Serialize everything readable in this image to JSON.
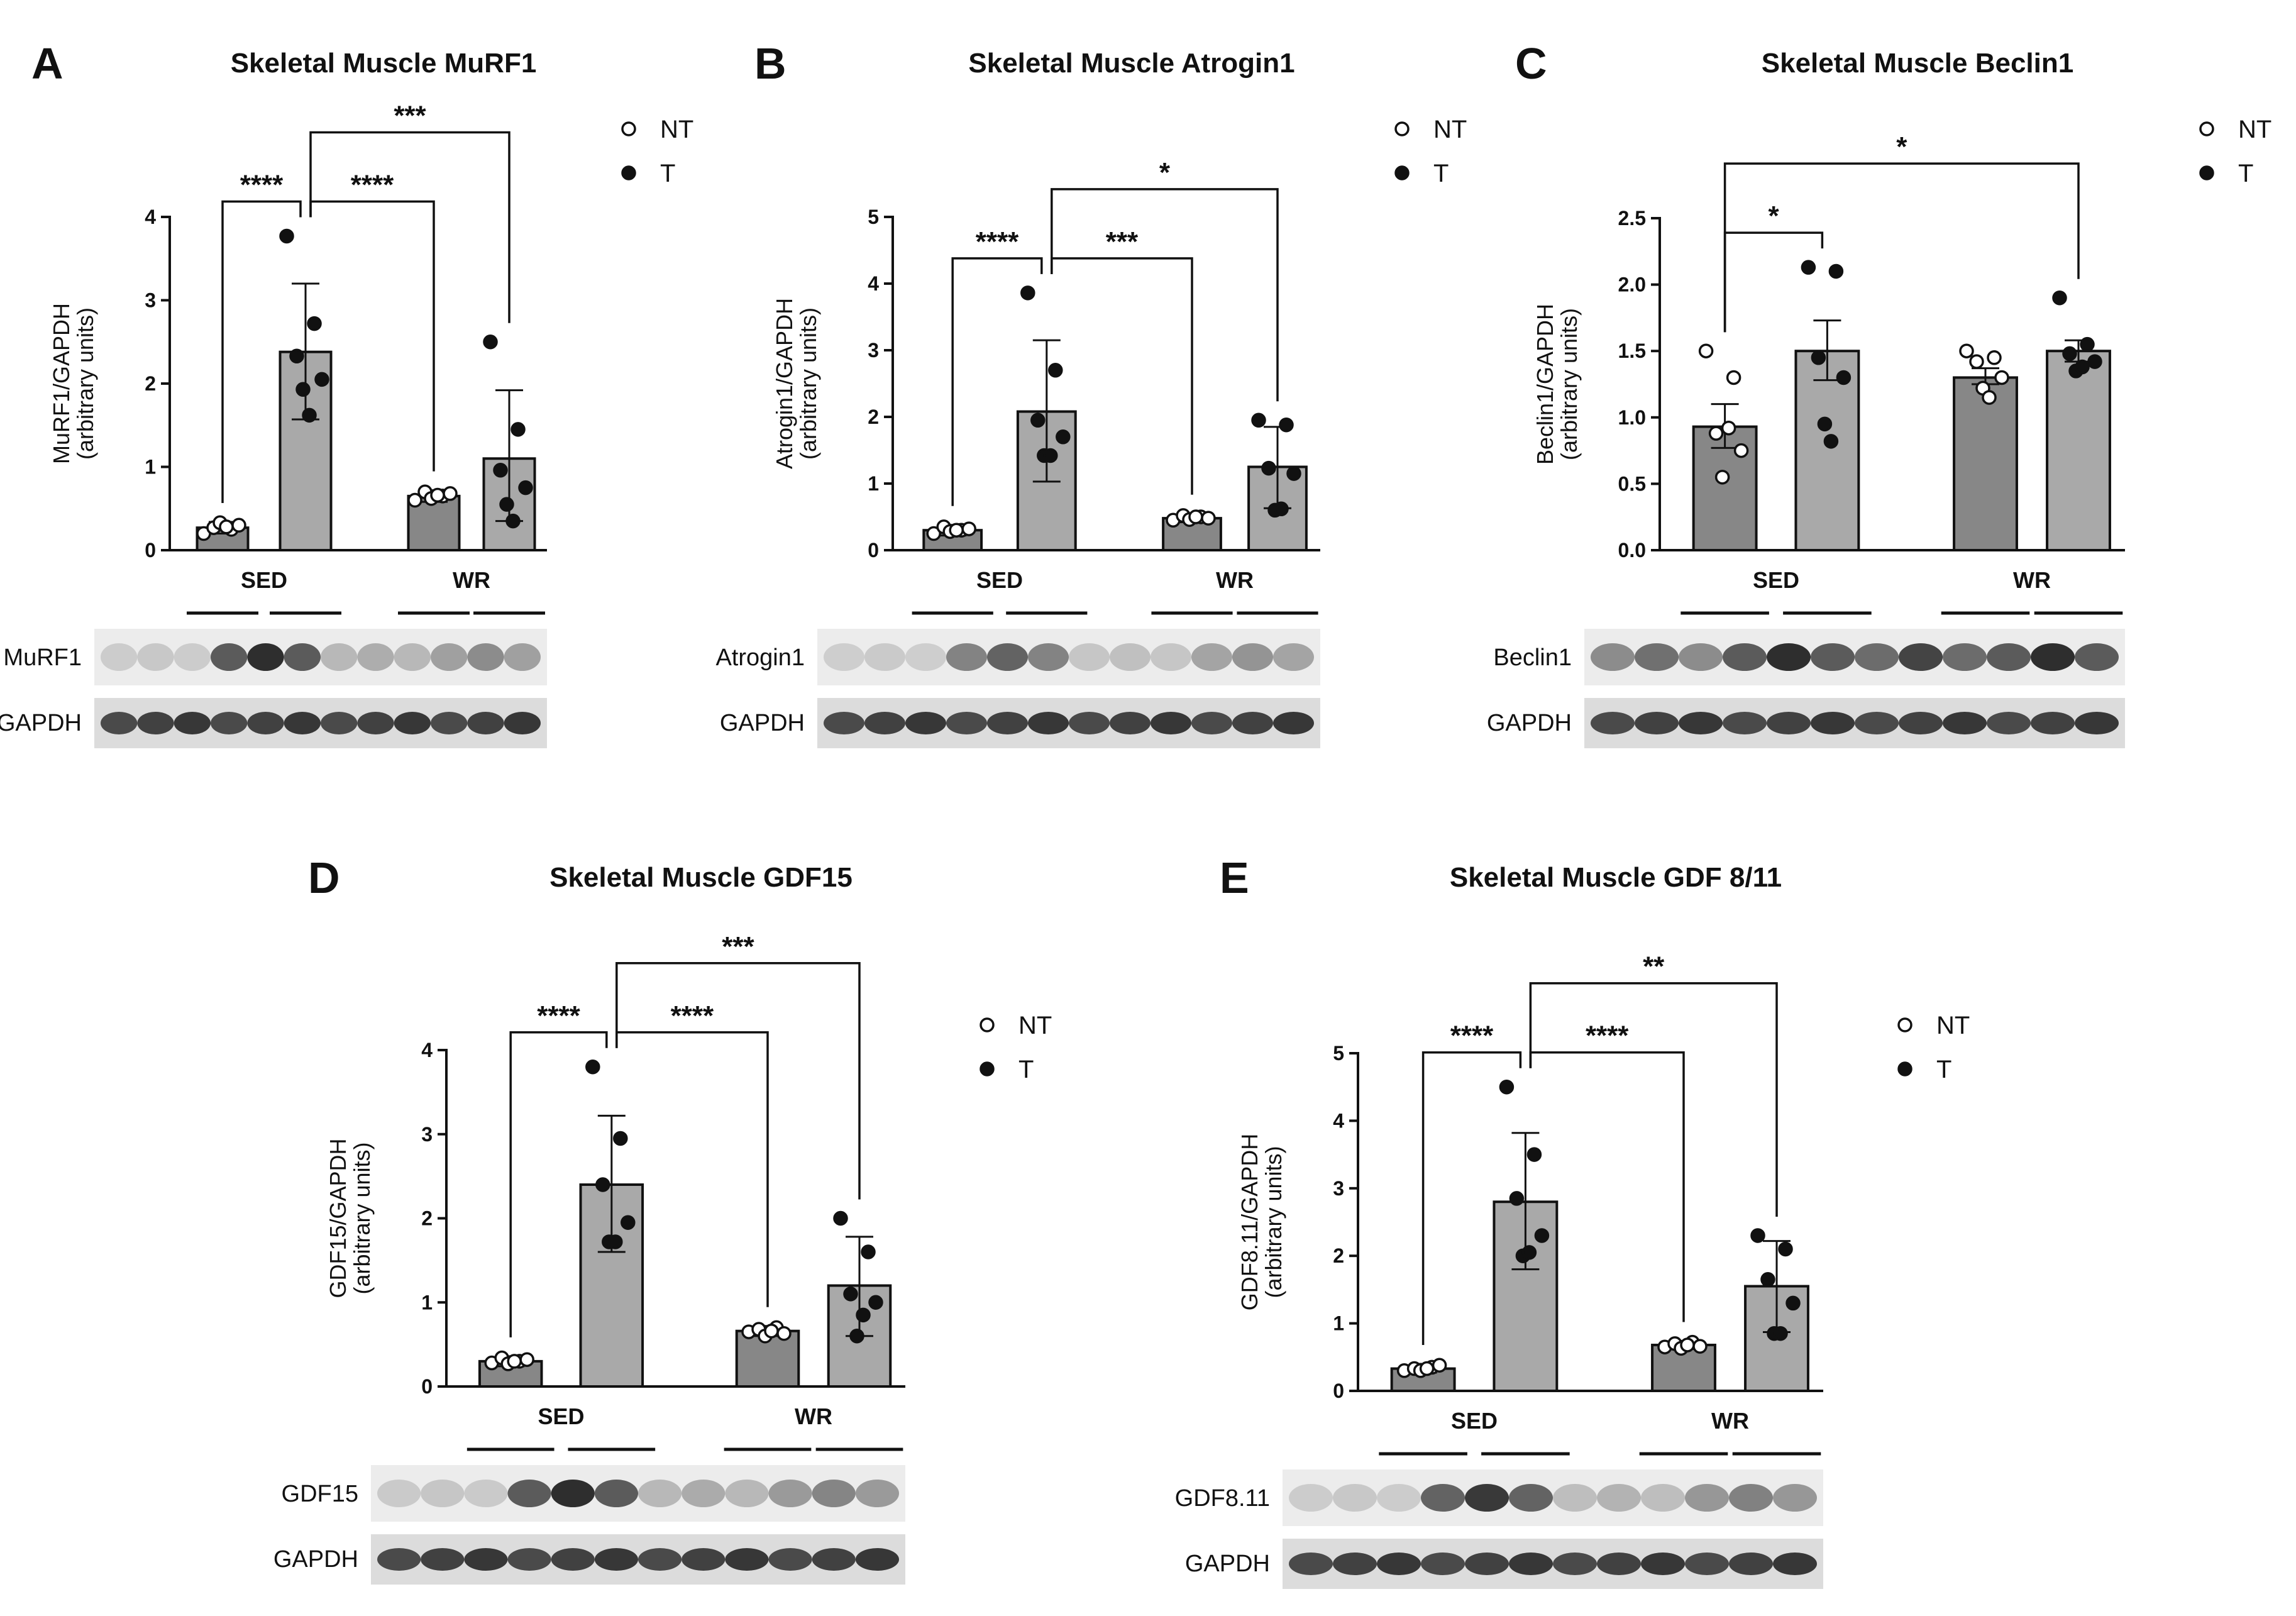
{
  "charts": [
    {
      "id": "A",
      "letter": "A",
      "chart_data": {
        "type": "bar",
        "title": "Skeletal Muscle MuRF1",
        "ylabel": [
          "MuRF1/GAPDH",
          "(arbitrary units)"
        ],
        "ylim": [
          0,
          4
        ],
        "yticks": [
          "0",
          "1",
          "2",
          "3",
          "4"
        ],
        "groups": [
          "SED",
          "WR"
        ],
        "legend": [
          "NT",
          "T"
        ],
        "legend_position": "right",
        "bars": [
          {
            "group": "SED",
            "treatment": "NT",
            "mean": 0.27,
            "err_low": 0.2,
            "err_high": 0.34,
            "points": [
              0.2,
              0.25,
              0.27,
              0.3,
              0.33,
              0.28
            ]
          },
          {
            "group": "SED",
            "treatment": "T",
            "mean": 2.38,
            "err_low": 1.57,
            "err_high": 3.2,
            "points": [
              3.77,
              2.72,
              2.33,
              2.05,
              1.93,
              1.62
            ]
          },
          {
            "group": "WR",
            "treatment": "NT",
            "mean": 0.65,
            "err_low": 0.58,
            "err_high": 0.72,
            "points": [
              0.6,
              0.65,
              0.7,
              0.68,
              0.62,
              0.66
            ]
          },
          {
            "group": "WR",
            "treatment": "T",
            "mean": 1.1,
            "err_low": 0.35,
            "err_high": 1.92,
            "points": [
              2.5,
              1.45,
              0.96,
              0.75,
              0.55,
              0.35
            ]
          }
        ],
        "significance": [
          {
            "from": 0,
            "to": 1,
            "label": "****"
          },
          {
            "from": 1,
            "to": 2,
            "label": "****"
          },
          {
            "from": 1,
            "to": 3,
            "label": "***"
          }
        ],
        "ymax_plot": 4,
        "blot": {
          "labels": [
            "MuRF1",
            "GAPDH"
          ]
        }
      }
    },
    {
      "id": "B",
      "letter": "B",
      "chart_data": {
        "type": "bar",
        "title": "Skeletal Muscle Atrogin1",
        "ylabel": [
          "Atrogin1/GAPDH",
          "(arbitrary units)"
        ],
        "ylim": [
          0,
          5
        ],
        "yticks": [
          "0",
          "1",
          "2",
          "3",
          "4",
          "5"
        ],
        "groups": [
          "SED",
          "WR"
        ],
        "legend": [
          "NT",
          "T"
        ],
        "legend_position": "right",
        "bars": [
          {
            "group": "SED",
            "treatment": "NT",
            "mean": 0.3,
            "err_low": 0.22,
            "err_high": 0.38,
            "points": [
              0.25,
              0.3,
              0.35,
              0.32,
              0.28,
              0.3
            ]
          },
          {
            "group": "SED",
            "treatment": "T",
            "mean": 2.08,
            "err_low": 1.03,
            "err_high": 3.15,
            "points": [
              3.86,
              2.7,
              1.95,
              1.7,
              1.42,
              1.42
            ]
          },
          {
            "group": "WR",
            "treatment": "NT",
            "mean": 0.48,
            "err_low": 0.42,
            "err_high": 0.55,
            "points": [
              0.45,
              0.5,
              0.52,
              0.48,
              0.46,
              0.5
            ]
          },
          {
            "group": "WR",
            "treatment": "T",
            "mean": 1.25,
            "err_low": 0.63,
            "err_high": 1.85,
            "points": [
              1.95,
              1.88,
              1.23,
              1.15,
              0.6,
              0.62
            ]
          }
        ],
        "significance": [
          {
            "from": 0,
            "to": 1,
            "label": "****"
          },
          {
            "from": 1,
            "to": 2,
            "label": "***"
          },
          {
            "from": 1,
            "to": 3,
            "label": "*"
          }
        ],
        "ymax_plot": 5,
        "blot": {
          "labels": [
            "Atrogin1",
            "GAPDH"
          ]
        }
      }
    },
    {
      "id": "C",
      "letter": "C",
      "chart_data": {
        "type": "bar",
        "title": "Skeletal Muscle Beclin1",
        "ylabel": [
          "Beclin1/GAPDH",
          "(arbitrary units)"
        ],
        "ylim": [
          0,
          2.5
        ],
        "yticks": [
          "0.0",
          "0.5",
          "1.0",
          "1.5",
          "2.0",
          "2.5"
        ],
        "groups": [
          "SED",
          "WR"
        ],
        "legend": [
          "NT",
          "T"
        ],
        "legend_position": "right",
        "bars": [
          {
            "group": "SED",
            "treatment": "NT",
            "mean": 0.93,
            "err_low": 0.77,
            "err_high": 1.1,
            "points": [
              1.5,
              1.3,
              0.88,
              0.75,
              0.55,
              0.92
            ]
          },
          {
            "group": "SED",
            "treatment": "T",
            "mean": 1.5,
            "err_low": 1.28,
            "err_high": 1.73,
            "points": [
              2.13,
              2.1,
              1.45,
              1.3,
              0.95,
              0.82
            ]
          },
          {
            "group": "WR",
            "treatment": "NT",
            "mean": 1.3,
            "err_low": 1.25,
            "err_high": 1.37,
            "points": [
              1.5,
              1.45,
              1.42,
              1.3,
              1.22,
              1.15
            ]
          },
          {
            "group": "WR",
            "treatment": "T",
            "mean": 1.5,
            "err_low": 1.42,
            "err_high": 1.58,
            "points": [
              1.9,
              1.55,
              1.48,
              1.42,
              1.35,
              1.38
            ]
          }
        ],
        "significance": [
          {
            "from": 0,
            "to": 1,
            "label": "*"
          },
          {
            "from": 0,
            "to": 3,
            "label": "*"
          }
        ],
        "ymax_plot": 2.5,
        "blot": {
          "labels": [
            "Beclin1",
            "GAPDH"
          ]
        }
      }
    },
    {
      "id": "D",
      "letter": "D",
      "chart_data": {
        "type": "bar",
        "title": "Skeletal Muscle GDF15",
        "ylabel": [
          "GDF15/GAPDH",
          "(arbitrary units)"
        ],
        "ylim": [
          0,
          4
        ],
        "yticks": [
          "0",
          "1",
          "2",
          "3",
          "4"
        ],
        "groups": [
          "SED",
          "WR"
        ],
        "legend": [
          "NT",
          "T"
        ],
        "legend_position": "right",
        "bars": [
          {
            "group": "SED",
            "treatment": "NT",
            "mean": 0.3,
            "err_low": 0.24,
            "err_high": 0.36,
            "points": [
              0.28,
              0.3,
              0.34,
              0.32,
              0.27,
              0.3
            ]
          },
          {
            "group": "SED",
            "treatment": "T",
            "mean": 2.4,
            "err_low": 1.6,
            "err_high": 3.22,
            "points": [
              3.8,
              2.95,
              2.4,
              1.95,
              1.72,
              1.72
            ]
          },
          {
            "group": "WR",
            "treatment": "NT",
            "mean": 0.66,
            "err_low": 0.6,
            "err_high": 0.72,
            "points": [
              0.65,
              0.7,
              0.68,
              0.63,
              0.6,
              0.66
            ]
          },
          {
            "group": "WR",
            "treatment": "T",
            "mean": 1.2,
            "err_low": 0.6,
            "err_high": 1.78,
            "points": [
              2.0,
              1.6,
              1.1,
              1.0,
              0.6,
              0.85
            ]
          }
        ],
        "significance": [
          {
            "from": 0,
            "to": 1,
            "label": "****"
          },
          {
            "from": 1,
            "to": 2,
            "label": "****"
          },
          {
            "from": 1,
            "to": 3,
            "label": "***"
          }
        ],
        "ymax_plot": 4,
        "blot": {
          "labels": [
            "GDF15",
            "GAPDH"
          ]
        }
      }
    },
    {
      "id": "E",
      "letter": "E",
      "chart_data": {
        "type": "bar",
        "title": "Skeletal Muscle GDF 8/11",
        "ylabel": [
          "GDF8.11/GAPDH",
          "(arbitrary units)"
        ],
        "ylim": [
          0,
          5
        ],
        "yticks": [
          "0",
          "1",
          "2",
          "3",
          "4",
          "5"
        ],
        "groups": [
          "SED",
          "WR"
        ],
        "legend": [
          "NT",
          "T"
        ],
        "legend_position": "right",
        "bars": [
          {
            "group": "SED",
            "treatment": "NT",
            "mean": 0.33,
            "err_low": 0.27,
            "err_high": 0.4,
            "points": [
              0.3,
              0.35,
              0.33,
              0.38,
              0.3,
              0.33
            ]
          },
          {
            "group": "SED",
            "treatment": "T",
            "mean": 2.8,
            "err_low": 1.8,
            "err_high": 3.82,
            "points": [
              4.5,
              3.5,
              2.85,
              2.3,
              2.0,
              2.05
            ]
          },
          {
            "group": "WR",
            "treatment": "NT",
            "mean": 0.68,
            "err_low": 0.62,
            "err_high": 0.74,
            "points": [
              0.65,
              0.72,
              0.7,
              0.66,
              0.63,
              0.68
            ]
          },
          {
            "group": "WR",
            "treatment": "T",
            "mean": 1.55,
            "err_low": 0.87,
            "err_high": 2.22,
            "points": [
              2.3,
              2.1,
              1.65,
              1.3,
              0.85,
              0.85
            ]
          }
        ],
        "significance": [
          {
            "from": 0,
            "to": 1,
            "label": "****"
          },
          {
            "from": 1,
            "to": 2,
            "label": "****"
          },
          {
            "from": 1,
            "to": 3,
            "label": "**"
          }
        ],
        "ymax_plot": 5,
        "blot": {
          "labels": [
            "GDF8.11",
            "GAPDH"
          ]
        }
      }
    }
  ]
}
